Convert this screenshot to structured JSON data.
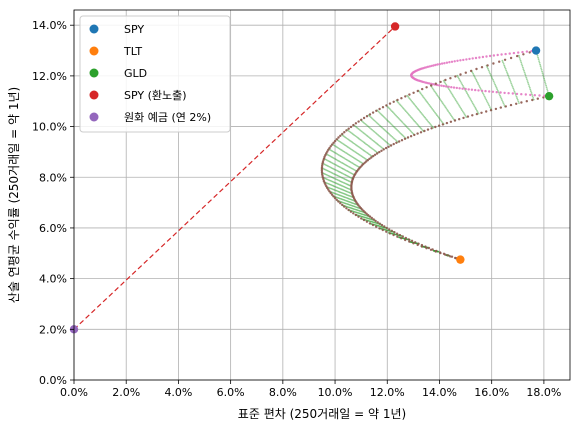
{
  "chart_data": {
    "type": "scatter",
    "xlabel": "표준 편차 (250거래일 = 약 1년)",
    "ylabel": "산술 연평균 수익률 (250거래일 = 약 1년)",
    "xlim": [
      0,
      19
    ],
    "ylim": [
      0,
      14.6
    ],
    "xticks": [
      "0.0%",
      "2.0%",
      "4.0%",
      "6.0%",
      "8.0%",
      "10.0%",
      "12.0%",
      "14.0%",
      "16.0%",
      "18.0%"
    ],
    "yticks": [
      "0.0%",
      "2.0%",
      "4.0%",
      "6.0%",
      "8.0%",
      "10.0%",
      "12.0%",
      "14.0%"
    ],
    "grid": true,
    "legend_position": "top-left",
    "series": [
      {
        "name": "SPY",
        "color": "#1f77b4",
        "x": [
          17.7
        ],
        "y": [
          13.0
        ]
      },
      {
        "name": "TLT",
        "color": "#ff7f0e",
        "x": [
          14.8
        ],
        "y": [
          4.75
        ]
      },
      {
        "name": "GLD",
        "color": "#2ca02c",
        "x": [
          18.2
        ],
        "y": [
          11.2
        ]
      },
      {
        "name": "SPY (환노출)",
        "color": "#d62728",
        "x": [
          12.3
        ],
        "y": [
          13.95
        ]
      },
      {
        "name": "원화 예금 (연 2%)",
        "color": "#9467bd",
        "x": [
          0.0
        ],
        "y": [
          2.0
        ]
      }
    ],
    "capital_line": {
      "color": "#d62728",
      "from": [
        0.0,
        2.0
      ],
      "to": [
        12.3,
        13.95
      ]
    },
    "frontiers": {
      "spy_gld_color": "#e377c2",
      "tlt_gld_color": "#8c564b",
      "cloud_color": "#2ca02c"
    }
  }
}
